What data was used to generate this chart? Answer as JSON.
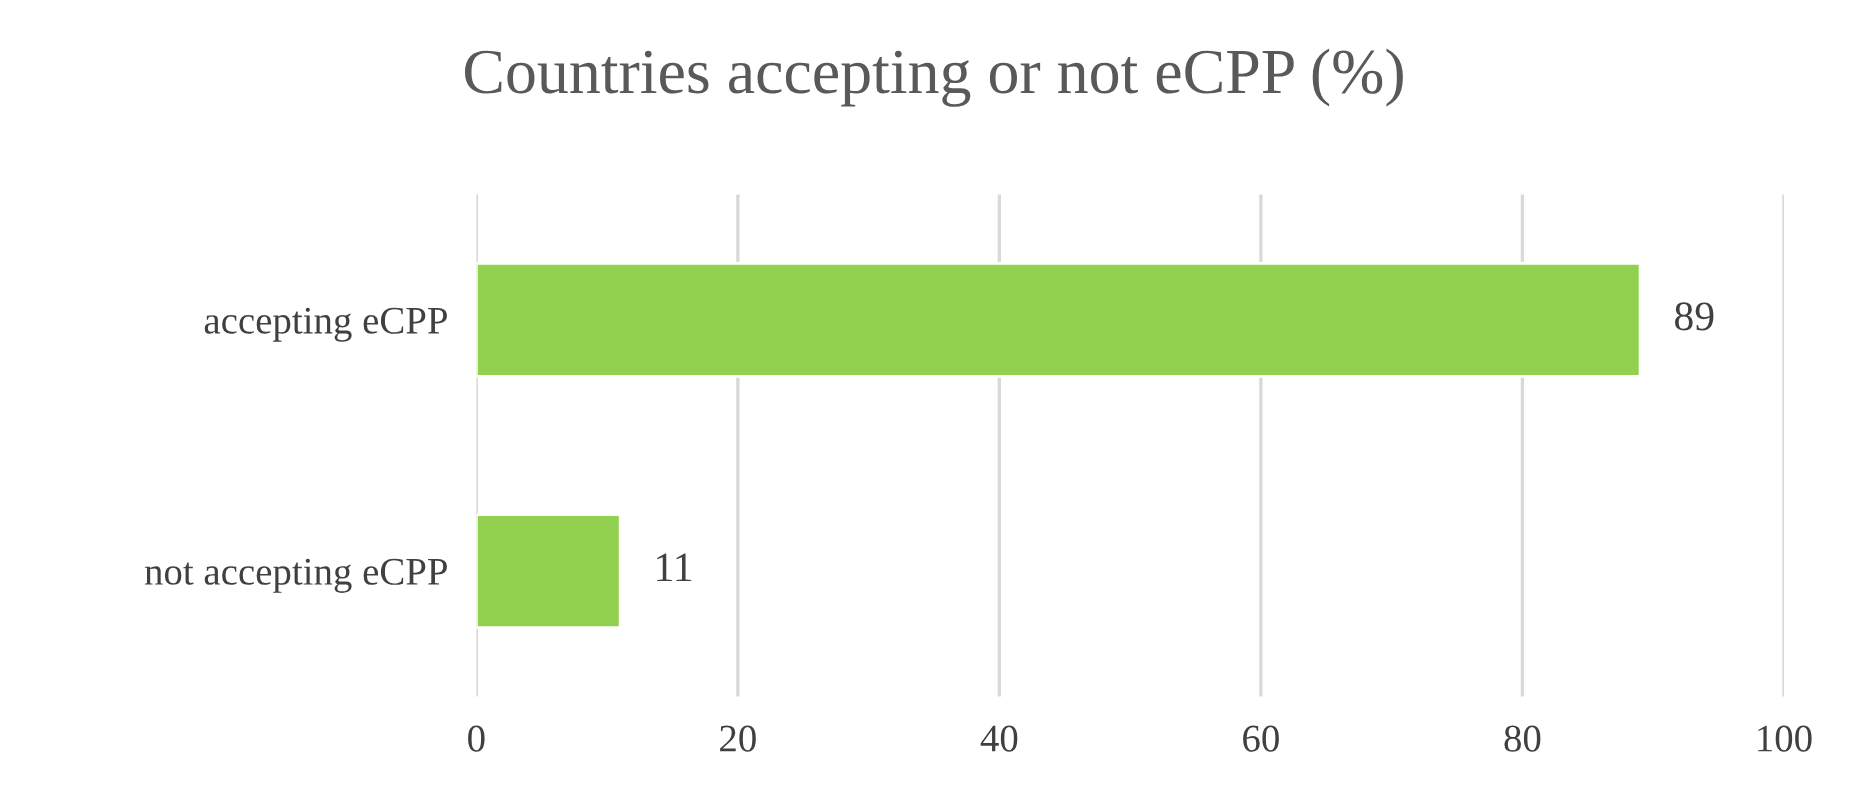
{
  "chart_data": {
    "type": "bar",
    "orientation": "horizontal",
    "title": "Countries accepting or not eCPP (%)",
    "categories": [
      "accepting eCPP",
      "not accepting eCPP"
    ],
    "values": [
      89,
      11
    ],
    "color": "#92d050",
    "data_labels": true,
    "xlim": [
      0,
      100
    ],
    "xticks": [
      0,
      20,
      40,
      60,
      80,
      100
    ],
    "grid": "x",
    "legend": false
  }
}
